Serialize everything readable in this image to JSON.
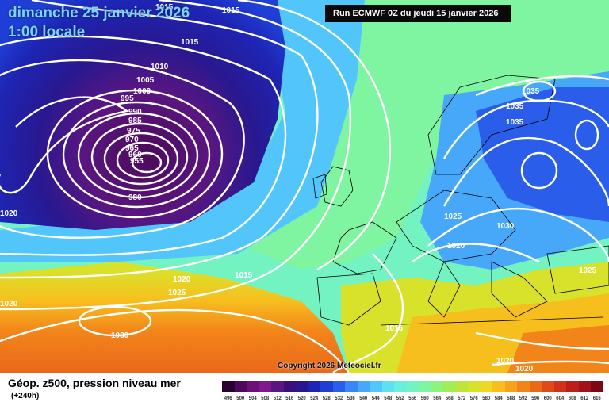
{
  "header": {
    "date": "dimanche 25 janvier 2026",
    "time": "1:00 locale",
    "run": "Run ECMWF 0Z du jeudi 15 janvier 2026"
  },
  "copyright": "Copyright 2026 Meteociel.fr",
  "legend": {
    "title": "Géop. z500, pression niveau mer",
    "subtitle": "(+240h)",
    "ticks": [
      "496",
      "500",
      "504",
      "508",
      "512",
      "516",
      "520",
      "524",
      "528",
      "532",
      "536",
      "540",
      "544",
      "548",
      "552",
      "556",
      "560",
      "564",
      "568",
      "572",
      "576",
      "580",
      "584",
      "588",
      "592",
      "596",
      "600",
      "604",
      "608",
      "612",
      "616"
    ],
    "colors": [
      "#2a0033",
      "#4b0a5a",
      "#6a1277",
      "#801a8c",
      "#5a1680",
      "#3b0f7a",
      "#281890",
      "#1e25b4",
      "#1f3ed6",
      "#2a5eea",
      "#3a86f4",
      "#47a8fa",
      "#52c6fb",
      "#5fe0f2",
      "#6aeedf",
      "#74f3c2",
      "#7ff5a2",
      "#8ef27e",
      "#a2ec58",
      "#bde53a",
      "#d9e22a",
      "#efd824",
      "#f7bf1e",
      "#f7a21c",
      "#f2851a",
      "#ea681a",
      "#df4b18",
      "#d1331a",
      "#bb1f1a",
      "#a0111a",
      "#7c0816"
    ]
  },
  "isobar_labels": [
    "1015",
    "1015",
    "1015",
    "1010",
    "1005",
    "1000",
    "995",
    "990",
    "985",
    "975",
    "970",
    "965",
    "960",
    "955",
    "980",
    "1020",
    "1035",
    "1035",
    "1035",
    "1025",
    "1030",
    "1020",
    "1025",
    "1015",
    "1020",
    "1025",
    "1030",
    "1020",
    "1015",
    "1020",
    "1020"
  ]
}
